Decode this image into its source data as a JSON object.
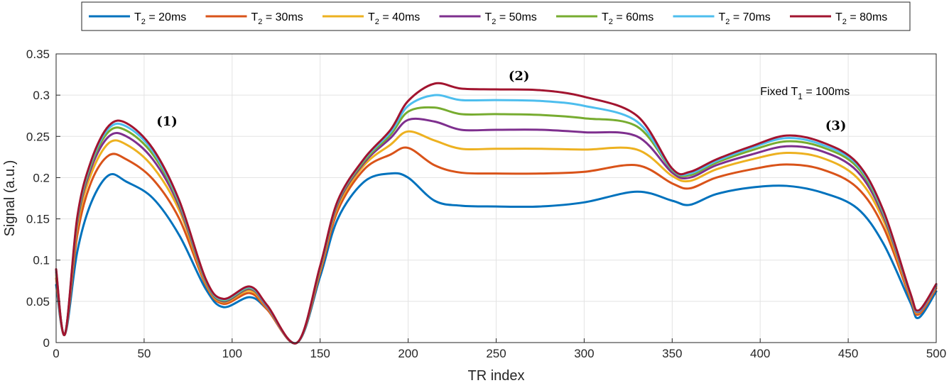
{
  "chart_data": {
    "type": "line",
    "xlabel": "TR index",
    "ylabel": "Signal (a.u.)",
    "xlim": [
      0,
      500
    ],
    "ylim": [
      0,
      0.35
    ],
    "xticks": [
      "0",
      "50",
      "100",
      "150",
      "200",
      "250",
      "300",
      "350",
      "400",
      "450",
      "500"
    ],
    "yticks": [
      "0",
      "0.05",
      "0.1",
      "0.15",
      "0.2",
      "0.25",
      "0.3",
      "0.35"
    ],
    "grid": true,
    "legend_position": "top-outside",
    "annotations": [
      {
        "text": "(1)",
        "x": 57,
        "y": 0.263,
        "style": "bold"
      },
      {
        "text": "(2)",
        "x": 257,
        "y": 0.318,
        "style": "bold"
      },
      {
        "text": "(3)",
        "x": 437,
        "y": 0.258,
        "style": "bold"
      },
      {
        "text": "Fixed T",
        "sub": "1",
        "rest": " = 100ms",
        "x": 400,
        "y": 0.3,
        "style": "plain"
      }
    ],
    "x": [
      0,
      5,
      12,
      20,
      30,
      40,
      55,
      70,
      85,
      95,
      110,
      120,
      137,
      150,
      160,
      175,
      190,
      200,
      215,
      230,
      250,
      275,
      300,
      330,
      350,
      360,
      375,
      395,
      415,
      435,
      455,
      470,
      485,
      490,
      500
    ],
    "series": [
      {
        "name": "T = 20ms",
        "sub": "2",
        "color": "#0072BD",
        "values": [
          0.07,
          0.01,
          0.11,
          0.17,
          0.203,
          0.195,
          0.175,
          0.13,
          0.065,
          0.043,
          0.055,
          0.04,
          0.0,
          0.08,
          0.15,
          0.195,
          0.205,
          0.2,
          0.172,
          0.166,
          0.165,
          0.165,
          0.17,
          0.183,
          0.172,
          0.167,
          0.18,
          0.188,
          0.19,
          0.182,
          0.163,
          0.12,
          0.05,
          0.03,
          0.062
        ]
      },
      {
        "name": "T = 30ms",
        "sub": "2",
        "color": "#D95319",
        "values": [
          0.078,
          0.01,
          0.13,
          0.195,
          0.227,
          0.222,
          0.198,
          0.15,
          0.07,
          0.047,
          0.06,
          0.04,
          0.0,
          0.085,
          0.16,
          0.21,
          0.228,
          0.236,
          0.215,
          0.206,
          0.205,
          0.205,
          0.207,
          0.215,
          0.193,
          0.187,
          0.2,
          0.21,
          0.216,
          0.21,
          0.188,
          0.14,
          0.055,
          0.034,
          0.066
        ]
      },
      {
        "name": "T = 40ms",
        "sub": "2",
        "color": "#EDB120",
        "values": [
          0.082,
          0.01,
          0.14,
          0.205,
          0.242,
          0.24,
          0.213,
          0.16,
          0.072,
          0.049,
          0.063,
          0.042,
          0.0,
          0.088,
          0.165,
          0.215,
          0.24,
          0.256,
          0.245,
          0.235,
          0.235,
          0.235,
          0.234,
          0.234,
          0.202,
          0.196,
          0.21,
          0.222,
          0.23,
          0.224,
          0.2,
          0.148,
          0.058,
          0.036,
          0.068
        ]
      },
      {
        "name": "T = 50ms",
        "sub": "2",
        "color": "#7E2F8E",
        "values": [
          0.085,
          0.01,
          0.145,
          0.212,
          0.25,
          0.25,
          0.222,
          0.165,
          0.074,
          0.05,
          0.065,
          0.043,
          0.0,
          0.09,
          0.168,
          0.218,
          0.248,
          0.27,
          0.268,
          0.258,
          0.258,
          0.258,
          0.255,
          0.25,
          0.206,
          0.2,
          0.215,
          0.228,
          0.238,
          0.232,
          0.208,
          0.153,
          0.06,
          0.037,
          0.069
        ]
      },
      {
        "name": "T = 60ms",
        "sub": "2",
        "color": "#77AC30",
        "values": [
          0.087,
          0.01,
          0.148,
          0.216,
          0.256,
          0.257,
          0.228,
          0.168,
          0.075,
          0.051,
          0.066,
          0.044,
          0.0,
          0.091,
          0.17,
          0.22,
          0.252,
          0.28,
          0.285,
          0.277,
          0.277,
          0.276,
          0.272,
          0.262,
          0.209,
          0.203,
          0.218,
          0.233,
          0.244,
          0.237,
          0.213,
          0.156,
          0.061,
          0.038,
          0.07
        ]
      },
      {
        "name": "T = 70ms",
        "sub": "2",
        "color": "#4DBEEE",
        "values": [
          0.088,
          0.01,
          0.15,
          0.219,
          0.26,
          0.262,
          0.232,
          0.17,
          0.076,
          0.052,
          0.067,
          0.044,
          0.0,
          0.092,
          0.171,
          0.222,
          0.255,
          0.287,
          0.3,
          0.294,
          0.294,
          0.293,
          0.287,
          0.268,
          0.21,
          0.205,
          0.22,
          0.236,
          0.248,
          0.24,
          0.216,
          0.158,
          0.061,
          0.038,
          0.07
        ]
      },
      {
        "name": "T = 80ms",
        "sub": "2",
        "color": "#A2142F",
        "values": [
          0.089,
          0.01,
          0.152,
          0.221,
          0.263,
          0.266,
          0.235,
          0.172,
          0.077,
          0.053,
          0.068,
          0.045,
          0.0,
          0.093,
          0.172,
          0.223,
          0.258,
          0.293,
          0.314,
          0.308,
          0.307,
          0.306,
          0.298,
          0.275,
          0.211,
          0.207,
          0.222,
          0.238,
          0.251,
          0.243,
          0.218,
          0.16,
          0.062,
          0.039,
          0.071
        ]
      }
    ]
  }
}
